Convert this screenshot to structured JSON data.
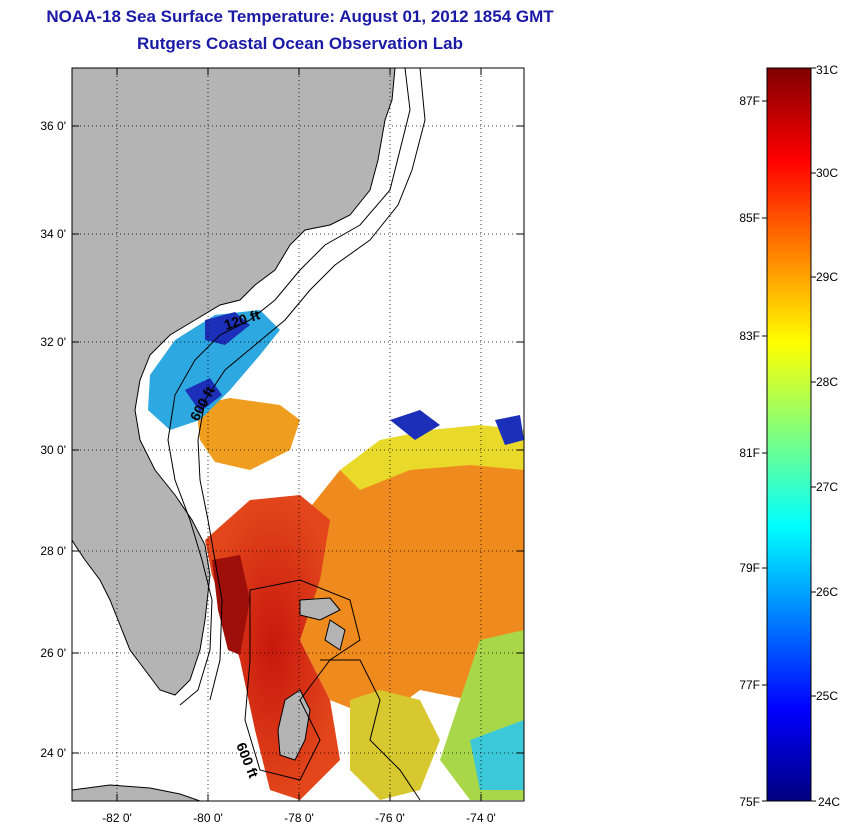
{
  "title": {
    "line1": "NOAA-18 Sea Surface Temperature:  August 01, 2012 1854 GMT",
    "line2": "Rutgers Coastal Ocean Observation Lab"
  },
  "map": {
    "lon_ticks": [
      "-82 0'",
      "-80 0'",
      "-78 0'",
      "-76 0'",
      "-74 0'"
    ],
    "lat_ticks": [
      "36 0'",
      "34 0'",
      "32 0'",
      "30 0'",
      "28 0'",
      "26 0'",
      "24 0'"
    ],
    "contour_labels": [
      "120 ft",
      "600 ft",
      "600 ft"
    ],
    "colors": {
      "land": "#b4b4b4",
      "ocean_nodata": "#ffffff"
    }
  },
  "colorbar": {
    "celsius_labels": [
      "31C",
      "30C",
      "29C",
      "28C",
      "27C",
      "26C",
      "25C",
      "24C"
    ],
    "fahrenheit_labels": [
      "87F",
      "85F",
      "83F",
      "81F",
      "79F",
      "77F",
      "75F"
    ],
    "colormap": "jet"
  }
}
